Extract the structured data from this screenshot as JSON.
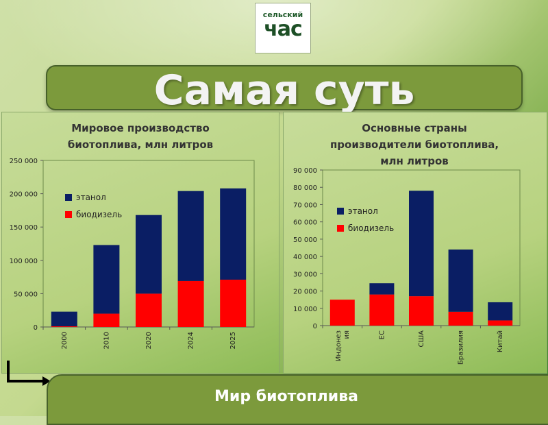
{
  "logo": {
    "line1": "сельский",
    "line2": "час"
  },
  "header": {
    "title": "Самая суть"
  },
  "footer": {
    "title": "Мир биотоплива"
  },
  "chart_data": [
    {
      "type": "bar",
      "stacked": true,
      "title_lines": [
        "Мировое производство",
        "биотоплива, млн литров"
      ],
      "categories": [
        "2000",
        "2010",
        "2020",
        "2024",
        "2025"
      ],
      "series": [
        {
          "name": "биодизель",
          "color": "#ff0000",
          "values": [
            1000,
            20000,
            50000,
            69000,
            71000
          ]
        },
        {
          "name": "этанол",
          "color": "#0a1e64",
          "values": [
            22000,
            103000,
            118000,
            135000,
            137000
          ]
        }
      ],
      "ylim": [
        0,
        250000
      ],
      "yticks": [
        "0",
        "50 000",
        "100 000",
        "150 000",
        "200 000",
        "250 000"
      ],
      "ytick_values": [
        0,
        50000,
        100000,
        150000,
        200000,
        250000
      ],
      "grid": false,
      "legend": "left"
    },
    {
      "type": "bar",
      "stacked": true,
      "title_lines": [
        "Основные страны",
        "производители биотоплива,",
        "млн литров"
      ],
      "categories": [
        "Индонез ия",
        "ЕС",
        "США",
        "Бразилия",
        "Китай"
      ],
      "category_lines": [
        [
          "Индонез",
          "ия"
        ],
        [
          "ЕС"
        ],
        [
          "США"
        ],
        [
          "Бразилия"
        ],
        [
          "Китай"
        ]
      ],
      "series": [
        {
          "name": "биодизель",
          "color": "#ff0000",
          "values": [
            15000,
            18000,
            17000,
            8000,
            3000
          ]
        },
        {
          "name": "этанол",
          "color": "#0a1e64",
          "values": [
            0,
            6500,
            61000,
            36000,
            10500
          ]
        }
      ],
      "ylim": [
        0,
        90000
      ],
      "yticks": [
        "0",
        "10 000",
        "20 000",
        "30 000",
        "40 000",
        "50 000",
        "60 000",
        "70 000",
        "80 000",
        "90 000"
      ],
      "ytick_values": [
        0,
        10000,
        20000,
        30000,
        40000,
        50000,
        60000,
        70000,
        80000,
        90000
      ],
      "grid": false,
      "legend": "left"
    }
  ]
}
